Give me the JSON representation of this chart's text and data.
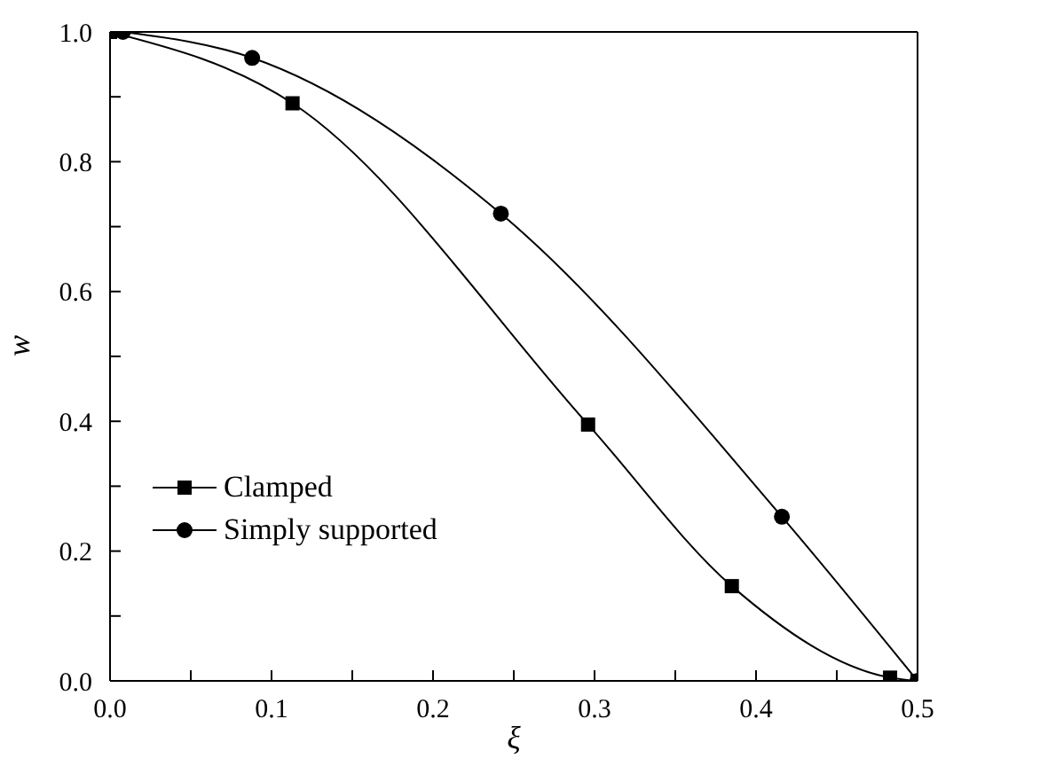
{
  "chart_data": {
    "type": "line",
    "xlabel": "ξ",
    "ylabel": "w",
    "xlim": [
      0,
      0.5
    ],
    "ylim": [
      0,
      1
    ],
    "xticks": [
      {
        "value": 0,
        "label": "0.0"
      },
      {
        "value": 0.05,
        "label": null
      },
      0.1,
      {
        "value": 0.15,
        "label": null
      },
      0.2,
      {
        "value": 0.25,
        "label": null
      },
      0.3,
      {
        "value": 0.35,
        "label": null
      },
      0.4,
      {
        "value": 0.45,
        "label": null
      },
      0.5
    ],
    "yticks": [
      {
        "value": 0,
        "label": "0.0"
      },
      {
        "value": 0.1,
        "label": null
      },
      0.2,
      {
        "value": 0.3,
        "label": null
      },
      0.4,
      {
        "value": 0.5,
        "label": null
      },
      0.6,
      {
        "value": 0.7,
        "label": null
      },
      0.8,
      {
        "value": 0.9,
        "label": null
      },
      {
        "value": 1,
        "label": "1.0"
      }
    ],
    "grid": false,
    "legend": "bottom left",
    "line_style": "solid",
    "series": [
      {
        "name": "Clamped",
        "color": "#000000",
        "marker": "square",
        "x": [
          0,
          0.113,
          0.296,
          0.385,
          0.483,
          0.5
        ],
        "values": [
          1,
          0.89,
          0.395,
          0.146,
          0.005,
          0
        ]
      },
      {
        "name": "Simply supported",
        "color": "#000000",
        "marker": "circle",
        "x": [
          0.008,
          0.088,
          0.242,
          0.416,
          0.5
        ],
        "values": [
          1,
          0.96,
          0.72,
          0.253,
          0
        ]
      }
    ]
  }
}
